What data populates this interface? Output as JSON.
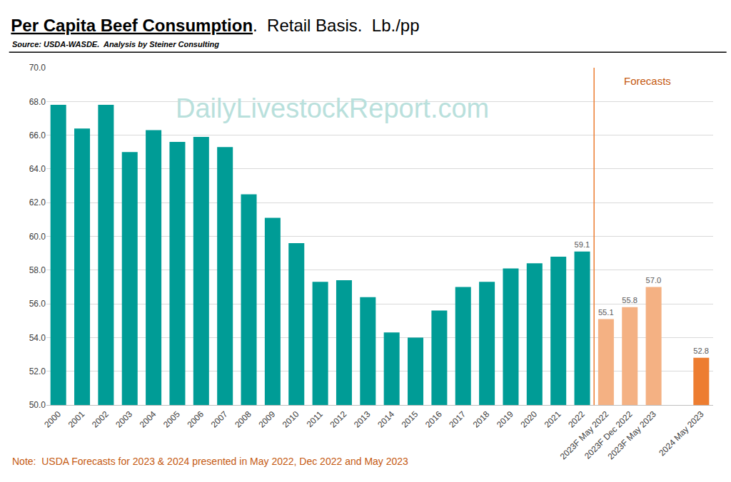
{
  "chart_data": {
    "type": "bar",
    "title": "Per Capita Beef Consumption.  Retail Basis.  Lb./pp",
    "subtitle": "Source: USDA-WASDE.  Analysis by Steiner Consulting",
    "watermark": "DailyLivestockReport.com",
    "annotations": [
      "Forecasts"
    ],
    "note": "Note:  USDA Forecasts for 2023 & 2024 presented in May 2022, Dec 2022 and May 2023",
    "categories": [
      "2000",
      "2001",
      "2002",
      "2003",
      "2004",
      "2005",
      "2006",
      "2007",
      "2008",
      "2009",
      "2010",
      "2011",
      "2012",
      "2013",
      "2014",
      "2015",
      "2016",
      "2017",
      "2018",
      "2019",
      "2020",
      "2021",
      "2022",
      "2023F May 2022",
      "2023F Dec 2022",
      "2023F May 2023",
      null,
      "2024 May 2023"
    ],
    "values": [
      67.8,
      66.4,
      67.8,
      65.0,
      66.3,
      65.6,
      65.9,
      65.3,
      62.5,
      61.1,
      59.6,
      57.3,
      57.4,
      56.4,
      54.3,
      54.0,
      55.6,
      57.0,
      57.3,
      58.1,
      58.4,
      58.8,
      59.1,
      55.1,
      55.8,
      57.0,
      null,
      52.8
    ],
    "value_labels": [
      null,
      null,
      null,
      null,
      null,
      null,
      null,
      null,
      null,
      null,
      null,
      null,
      null,
      null,
      null,
      null,
      null,
      null,
      null,
      null,
      null,
      null,
      "59.1",
      "55.1",
      "55.8",
      "57.0",
      null,
      "52.8"
    ],
    "colors": [
      "#009C96",
      "#009C96",
      "#009C96",
      "#009C96",
      "#009C96",
      "#009C96",
      "#009C96",
      "#009C96",
      "#009C96",
      "#009C96",
      "#009C96",
      "#009C96",
      "#009C96",
      "#009C96",
      "#009C96",
      "#009C96",
      "#009C96",
      "#009C96",
      "#009C96",
      "#009C96",
      "#009C96",
      "#009C96",
      "#009C96",
      "#F4B183",
      "#F4B183",
      "#F4B183",
      null,
      "#ED7D31"
    ],
    "data_labels": true,
    "ylim": [
      50,
      70
    ],
    "yticks": [
      {
        "value": 50,
        "label": "50.0"
      },
      {
        "value": 52,
        "label": "52.0"
      },
      {
        "value": 54,
        "label": "54.0"
      },
      {
        "value": 56,
        "label": "56.0"
      },
      {
        "value": 58,
        "label": "58.0"
      },
      {
        "value": 60,
        "label": "60.0"
      },
      {
        "value": 62,
        "label": "62.0"
      },
      {
        "value": 64,
        "label": "64.0"
      },
      {
        "value": 66,
        "label": "66.0"
      },
      {
        "value": 68,
        "label": "68.0"
      },
      {
        "value": 70,
        "label": "70.0"
      }
    ],
    "grid": true
  }
}
